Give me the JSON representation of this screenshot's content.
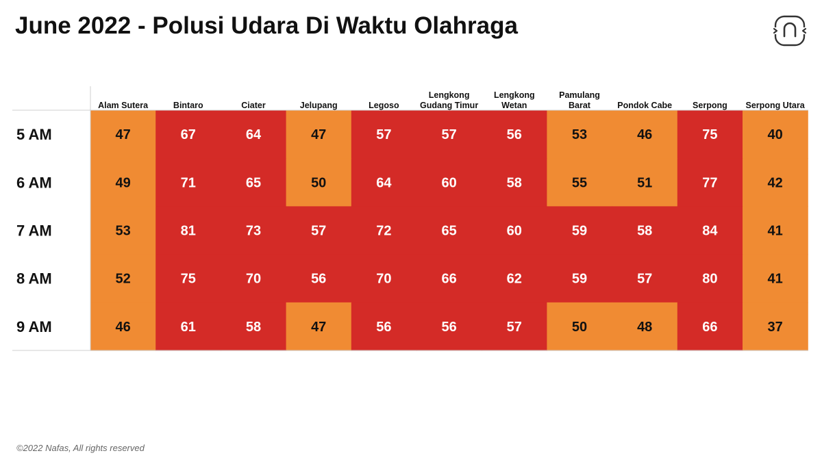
{
  "title": "June 2022 - Polusi Udara Di Waktu Olahraga",
  "footer": "©2022 Nafas, All rights reserved",
  "logo_icon": "nafas-logo-icon",
  "colors": {
    "orange": "#F08B33",
    "red": "#D42B27",
    "text_on_orange": "#111111",
    "text_on_red": "#ffffff"
  },
  "chart_data": {
    "type": "heatmap",
    "title": "June 2022 - Polusi Udara Di Waktu Olahraga",
    "columns": [
      [
        "Alam Sutera"
      ],
      [
        "Bintaro"
      ],
      [
        "Ciater"
      ],
      [
        "Jelupang"
      ],
      [
        "Legoso"
      ],
      [
        "Lengkong",
        "Gudang Timur"
      ],
      [
        "Lengkong",
        "Wetan"
      ],
      [
        "Pamulang",
        "Barat"
      ],
      [
        "Pondok Cabe"
      ],
      [
        "Serpong"
      ],
      [
        "Serpong Utara"
      ]
    ],
    "rows": [
      "5 AM",
      "6 AM",
      "7 AM",
      "8 AM",
      "9 AM"
    ],
    "values": [
      [
        47,
        67,
        64,
        47,
        57,
        57,
        56,
        53,
        46,
        75,
        40
      ],
      [
        49,
        71,
        65,
        50,
        64,
        60,
        58,
        55,
        51,
        77,
        42
      ],
      [
        53,
        81,
        73,
        57,
        72,
        65,
        60,
        59,
        58,
        84,
        41
      ],
      [
        52,
        75,
        70,
        56,
        70,
        66,
        62,
        59,
        57,
        80,
        41
      ],
      [
        46,
        61,
        58,
        47,
        56,
        56,
        57,
        50,
        48,
        66,
        37
      ]
    ],
    "cell_colors": [
      [
        "orange",
        "red",
        "red",
        "orange",
        "red",
        "red",
        "red",
        "orange",
        "orange",
        "red",
        "orange"
      ],
      [
        "orange",
        "red",
        "red",
        "orange",
        "red",
        "red",
        "red",
        "orange",
        "orange",
        "red",
        "orange"
      ],
      [
        "orange",
        "red",
        "red",
        "red",
        "red",
        "red",
        "red",
        "red",
        "red",
        "red",
        "orange"
      ],
      [
        "orange",
        "red",
        "red",
        "red",
        "red",
        "red",
        "red",
        "red",
        "red",
        "red",
        "orange"
      ],
      [
        "orange",
        "red",
        "red",
        "orange",
        "red",
        "red",
        "red",
        "orange",
        "orange",
        "red",
        "orange"
      ]
    ]
  }
}
